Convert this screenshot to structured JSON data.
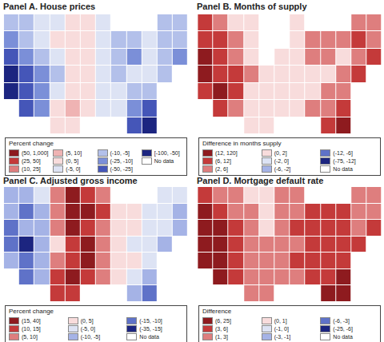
{
  "chart_data": [
    {
      "type": "choropleth",
      "title": "Panel A. House prices",
      "legend_title": "Percent change",
      "tick_labels": false,
      "legend_items": [
        {
          "label": "(50, 1,000]",
          "color": "#8e1b1f"
        },
        {
          "label": "(25, 50]",
          "color": "#c43a3a"
        },
        {
          "label": "(10, 25]",
          "color": "#de7e7e"
        },
        {
          "label": "(5, 10]",
          "color": "#efb3b3"
        },
        {
          "label": "(0, 5]",
          "color": "#f8dcdc"
        },
        {
          "label": "(-5, 0]",
          "color": "#dde3f4"
        },
        {
          "label": "(-10, -5]",
          "color": "#b3c0ea"
        },
        {
          "label": "(-25, -10]",
          "color": "#7b8fd8"
        },
        {
          "label": "(-50, -25]",
          "color": "#4556b8"
        },
        {
          "label": "[-100, -50]",
          "color": "#1c2580"
        },
        {
          "label": "No data",
          "color": "#ffffff"
        }
      ],
      "cells": [
        [
          6,
          6,
          5,
          5,
          4,
          4,
          5,
          null,
          null,
          null,
          6,
          6
        ],
        [
          7,
          6,
          5,
          4,
          4,
          4,
          5,
          6,
          6,
          5,
          6,
          6
        ],
        [
          8,
          7,
          6,
          5,
          4,
          4,
          5,
          6,
          7,
          5,
          6,
          7
        ],
        [
          9,
          8,
          7,
          6,
          4,
          4,
          5,
          6,
          5,
          5,
          6,
          null
        ],
        [
          9,
          8,
          7,
          5,
          4,
          4,
          5,
          5,
          6,
          6,
          null,
          null
        ],
        [
          null,
          8,
          7,
          4,
          3,
          4,
          5,
          5,
          7,
          8,
          null,
          null
        ],
        [
          null,
          null,
          null,
          4,
          4,
          null,
          null,
          null,
          8,
          9,
          null,
          null
        ]
      ]
    },
    {
      "type": "choropleth",
      "title": "Panel B. Months of supply",
      "legend_title": "Difference in months supply",
      "tick_labels": false,
      "legend_items": [
        {
          "label": "(12, 120]",
          "color": "#8e1b1f"
        },
        {
          "label": "(6, 12]",
          "color": "#c43a3a"
        },
        {
          "label": "(2, 6]",
          "color": "#de7e7e"
        },
        {
          "label": "(0, 2]",
          "color": "#f8dcdc"
        },
        {
          "label": "(-2, 0]",
          "color": "#dde3f4"
        },
        {
          "label": "(-6, -2]",
          "color": "#a5b3e6"
        },
        {
          "label": "(-12, -6]",
          "color": "#5f72c8"
        },
        {
          "label": "(-75, -12]",
          "color": "#1c2580"
        },
        {
          "label": "No data",
          "color": "#ffffff"
        }
      ],
      "cells": [
        [
          1,
          2,
          3,
          3,
          8,
          8,
          3,
          null,
          null,
          null,
          2,
          2
        ],
        [
          1,
          1,
          2,
          3,
          8,
          8,
          3,
          2,
          2,
          2,
          1,
          2
        ],
        [
          0,
          1,
          2,
          3,
          8,
          3,
          3,
          2,
          2,
          3,
          2,
          1
        ],
        [
          0,
          1,
          1,
          2,
          3,
          3,
          3,
          3,
          3,
          2,
          1,
          null
        ],
        [
          1,
          0,
          1,
          3,
          3,
          3,
          3,
          3,
          2,
          2,
          null,
          null
        ],
        [
          null,
          1,
          2,
          3,
          3,
          3,
          3,
          2,
          2,
          1,
          null,
          null
        ],
        [
          null,
          null,
          null,
          3,
          3,
          null,
          null,
          null,
          1,
          0,
          null,
          null
        ]
      ]
    },
    {
      "type": "choropleth",
      "title": "Panel C. Adjusted gross income",
      "legend_title": "Percent change",
      "tick_labels": false,
      "legend_items": [
        {
          "label": "(15, 40]",
          "color": "#8e1b1f"
        },
        {
          "label": "(10, 15]",
          "color": "#c43a3a"
        },
        {
          "label": "(5, 10]",
          "color": "#de7e7e"
        },
        {
          "label": "(0, 5]",
          "color": "#f8dcdc"
        },
        {
          "label": "(-5, 0]",
          "color": "#dde3f4"
        },
        {
          "label": "(-10, -5]",
          "color": "#a5b3e6"
        },
        {
          "label": "(-15, -10]",
          "color": "#5f72c8"
        },
        {
          "label": "(-35, -15]",
          "color": "#1c2580"
        },
        {
          "label": "No data",
          "color": "#ffffff"
        }
      ],
      "cells": [
        [
          5,
          5,
          4,
          2,
          0,
          1,
          2,
          null,
          null,
          null,
          4,
          4
        ],
        [
          5,
          6,
          5,
          2,
          0,
          0,
          1,
          3,
          3,
          4,
          4,
          5
        ],
        [
          6,
          5,
          5,
          2,
          0,
          1,
          2,
          3,
          3,
          4,
          4,
          5
        ],
        [
          6,
          7,
          5,
          3,
          1,
          0,
          2,
          3,
          4,
          4,
          5,
          null
        ],
        [
          5,
          6,
          5,
          2,
          1,
          0,
          2,
          3,
          3,
          4,
          null,
          null
        ],
        [
          null,
          6,
          5,
          1,
          0,
          1,
          2,
          3,
          4,
          5,
          null,
          null
        ],
        [
          null,
          null,
          null,
          1,
          1,
          null,
          null,
          null,
          5,
          6,
          null,
          null
        ]
      ]
    },
    {
      "type": "choropleth",
      "title": "Panel D. Mortgage default rate",
      "legend_title": "Difference",
      "tick_labels": false,
      "legend_items": [
        {
          "label": "(6, 25]",
          "color": "#8e1b1f"
        },
        {
          "label": "(3, 6]",
          "color": "#c43a3a"
        },
        {
          "label": "(1, 3]",
          "color": "#de7e7e"
        },
        {
          "label": "(0, 1]",
          "color": "#f8dcdc"
        },
        {
          "label": "(-1, 0]",
          "color": "#dde3f4"
        },
        {
          "label": "(-3, -1]",
          "color": "#a5b3e6"
        },
        {
          "label": "(-6, -3]",
          "color": "#5f72c8"
        },
        {
          "label": "(-25, -6]",
          "color": "#1c2580"
        },
        {
          "label": "No data",
          "color": "#ffffff"
        }
      ],
      "cells": [
        [
          1,
          2,
          2,
          3,
          3,
          2,
          2,
          null,
          null,
          null,
          2,
          2
        ],
        [
          0,
          1,
          2,
          2,
          3,
          2,
          2,
          1,
          1,
          1,
          2,
          2
        ],
        [
          0,
          0,
          1,
          2,
          3,
          2,
          1,
          1,
          1,
          1,
          2,
          1
        ],
        [
          0,
          0,
          1,
          2,
          2,
          2,
          2,
          1,
          1,
          1,
          1,
          null
        ],
        [
          0,
          0,
          1,
          2,
          2,
          2,
          1,
          1,
          1,
          1,
          null,
          null
        ],
        [
          null,
          0,
          1,
          2,
          2,
          2,
          2,
          1,
          1,
          0,
          null,
          null
        ],
        [
          null,
          null,
          null,
          2,
          2,
          null,
          null,
          null,
          0,
          0,
          null,
          null
        ]
      ]
    }
  ]
}
